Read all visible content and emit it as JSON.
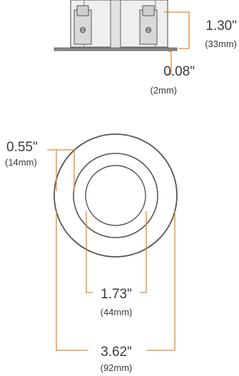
{
  "colors": {
    "leader": "#e8872f",
    "outline": "#555555",
    "text": "#3a3a3a"
  },
  "dimensions": {
    "height": {
      "inches": "1.30\"",
      "mm": "(33mm)"
    },
    "flange": {
      "inches": "0.08\"",
      "mm": "(2mm)"
    },
    "trim_width": {
      "inches": "0.55\"",
      "mm": "(14mm)"
    },
    "aperture": {
      "inches": "1.73\"",
      "mm": "(44mm)"
    },
    "outer_diameter": {
      "inches": "3.62\"",
      "mm": "(92mm)"
    }
  }
}
